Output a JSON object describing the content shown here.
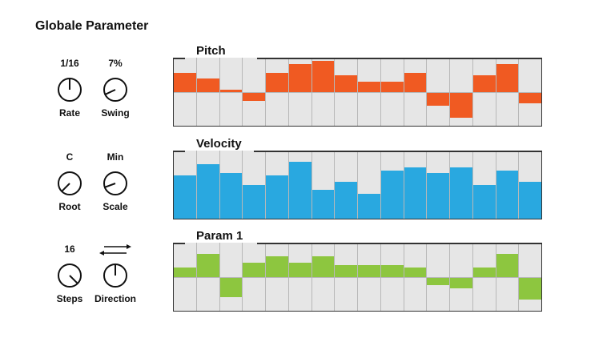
{
  "title": "Globale Parameter",
  "controls": [
    {
      "label": "Rate",
      "value": "1/16",
      "angle": 0
    },
    {
      "label": "Swing",
      "value": "7%",
      "angle": 245
    },
    {
      "label": "Root",
      "value": "C",
      "angle": 225
    },
    {
      "label": "Scale",
      "value": "Min",
      "angle": 250
    },
    {
      "label": "Steps",
      "value": "16",
      "angle": 135
    },
    {
      "label": "Direction",
      "value": "",
      "icon": "bidirectional-arrows-icon",
      "angle": 0
    }
  ],
  "lanes": [
    {
      "name": "Pitch",
      "color": "#f05a22",
      "bipolar": true,
      "values": [
        0.56,
        0.4,
        0.05,
        -0.26,
        0.56,
        0.81,
        0.91,
        0.49,
        0.3,
        0.3,
        0.56,
        -0.42,
        -0.77,
        0.49,
        0.81,
        -0.35
      ]
    },
    {
      "name": "Velocity",
      "color": "#29a8e0",
      "bipolar": false,
      "values": [
        0.63,
        0.8,
        0.67,
        0.5,
        0.63,
        0.84,
        0.42,
        0.54,
        0.37,
        0.71,
        0.75,
        0.67,
        0.75,
        0.5,
        0.71,
        0.54
      ]
    },
    {
      "name": "Param 1",
      "color": "#8dc63f",
      "bipolar": true,
      "values": [
        0.26,
        0.67,
        -0.59,
        0.41,
        0.59,
        0.41,
        0.59,
        0.34,
        0.34,
        0.34,
        0.26,
        -0.25,
        -0.34,
        0.26,
        0.67,
        -0.67
      ]
    }
  ]
}
